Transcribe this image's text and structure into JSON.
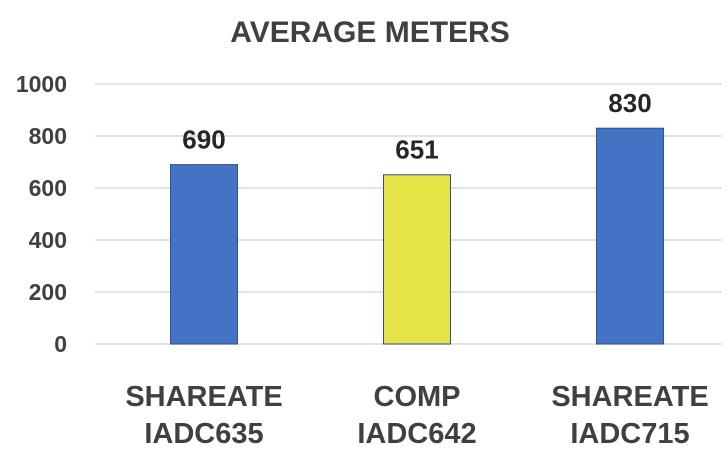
{
  "chart_data": {
    "type": "bar",
    "title": "AVERAGE METERS",
    "categories": [
      [
        "SHAREATE",
        "IADC635"
      ],
      [
        "COMP",
        "IADC642"
      ],
      [
        "SHAREATE",
        "IADC715"
      ]
    ],
    "values": [
      690,
      651,
      830
    ],
    "data_labels": [
      "690",
      "651",
      "830"
    ],
    "bar_colors": [
      "#4472C4",
      "#E5E346",
      "#4472C4"
    ],
    "ylim": [
      0,
      1000
    ],
    "yticks": [
      0,
      200,
      400,
      600,
      800,
      1000
    ],
    "ytick_labels": [
      "0",
      "200",
      "400",
      "600",
      "800",
      "1000"
    ],
    "grid": true,
    "gridline_color": "#d9d9d9",
    "xlabel": "",
    "ylabel": ""
  }
}
